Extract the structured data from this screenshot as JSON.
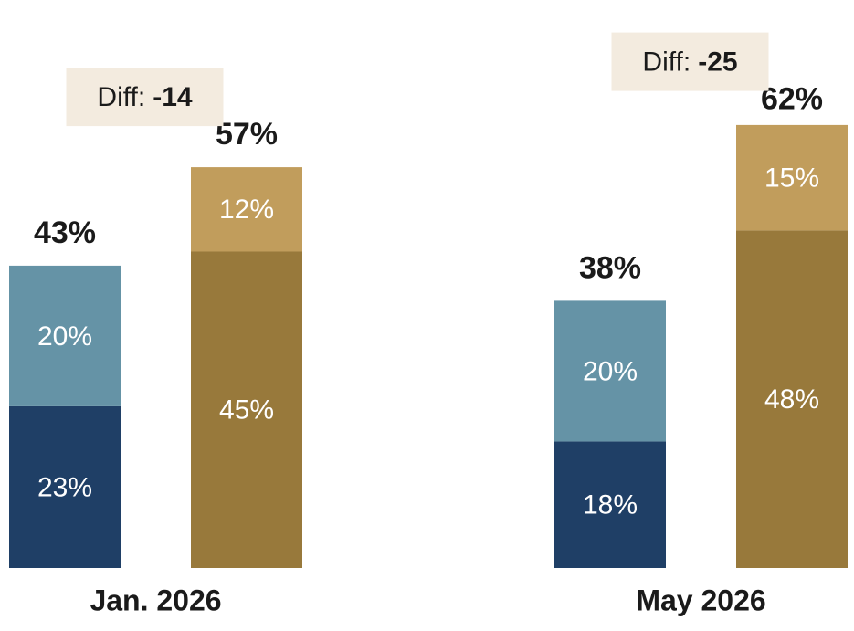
{
  "chart_data": {
    "type": "stacked_bar",
    "categories": [
      "Jan. 2026",
      "May 2026"
    ],
    "stacks": [
      {
        "series": [
          {
            "color": "#1f3f66",
            "values": [
              23,
              18
            ],
            "value_labels": [
              "23%",
              "18%"
            ]
          },
          {
            "color": "#6593a6",
            "values": [
              20,
              20
            ],
            "value_labels": [
              "20%",
              "20%"
            ]
          }
        ],
        "totals": [
          43,
          38
        ],
        "total_labels": [
          "43%",
          "38%"
        ]
      },
      {
        "series": [
          {
            "color": "#98793b",
            "values": [
              45,
              48
            ],
            "value_labels": [
              "45%",
              "48%"
            ]
          },
          {
            "color": "#c19d5c",
            "values": [
              12,
              15
            ],
            "value_labels": [
              "12%",
              "15%"
            ]
          }
        ],
        "totals": [
          57,
          62
        ],
        "total_labels": [
          "57%",
          "62%"
        ]
      }
    ],
    "annotations": [
      {
        "label": "Diff:",
        "value": -14
      },
      {
        "label": "Diff:",
        "value": -25
      }
    ]
  }
}
